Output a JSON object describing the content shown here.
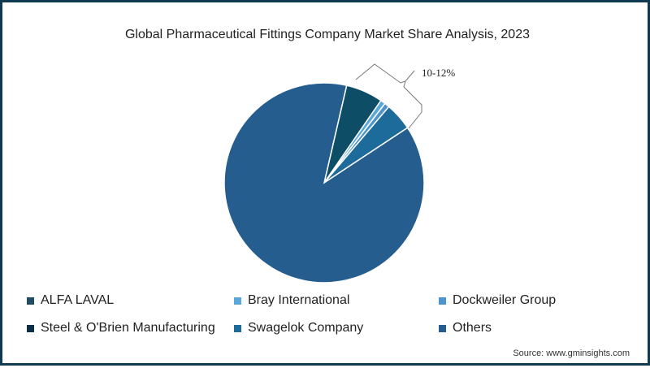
{
  "chart_data": {
    "type": "pie",
    "title": "Global Pharmaceutical Fittings Company Market Share Analysis, 2023",
    "start_angle_deg": 13,
    "slices": [
      {
        "name": "ALFA LAVAL",
        "value": 6.0,
        "color": "#0e4d66"
      },
      {
        "name": "Steel & O'Brien Manufacturing",
        "value": 0.0,
        "color": "#0c2f45"
      },
      {
        "name": "Bray International",
        "value": 0.8,
        "color": "#5aa7da"
      },
      {
        "name": "Dockweiler Group",
        "value": 0.8,
        "color": "#4f93cc"
      },
      {
        "name": "Swagelok Company",
        "value": 4.5,
        "color": "#1d6b9b"
      },
      {
        "name": "Others",
        "value": 87.9,
        "color": "#255d8f"
      }
    ],
    "annotation": "10-12%",
    "legend_position": "bottom"
  },
  "legend": [
    {
      "label": "ALFA LAVAL",
      "color": "#1e4d62"
    },
    {
      "label": "Bray International",
      "color": "#5aa7da"
    },
    {
      "label": "Dockweiler Group",
      "color": "#4f93cc"
    },
    {
      "label": "Steel & O'Brien Manufacturing",
      "color": "#0c2f45"
    },
    {
      "label": "Swagelok Company",
      "color": "#1d6b9b"
    },
    {
      "label": "Others",
      "color": "#255d8f"
    }
  ],
  "source": "Source: www.gminsights.com",
  "colors": {
    "border": "#0f3a52"
  }
}
